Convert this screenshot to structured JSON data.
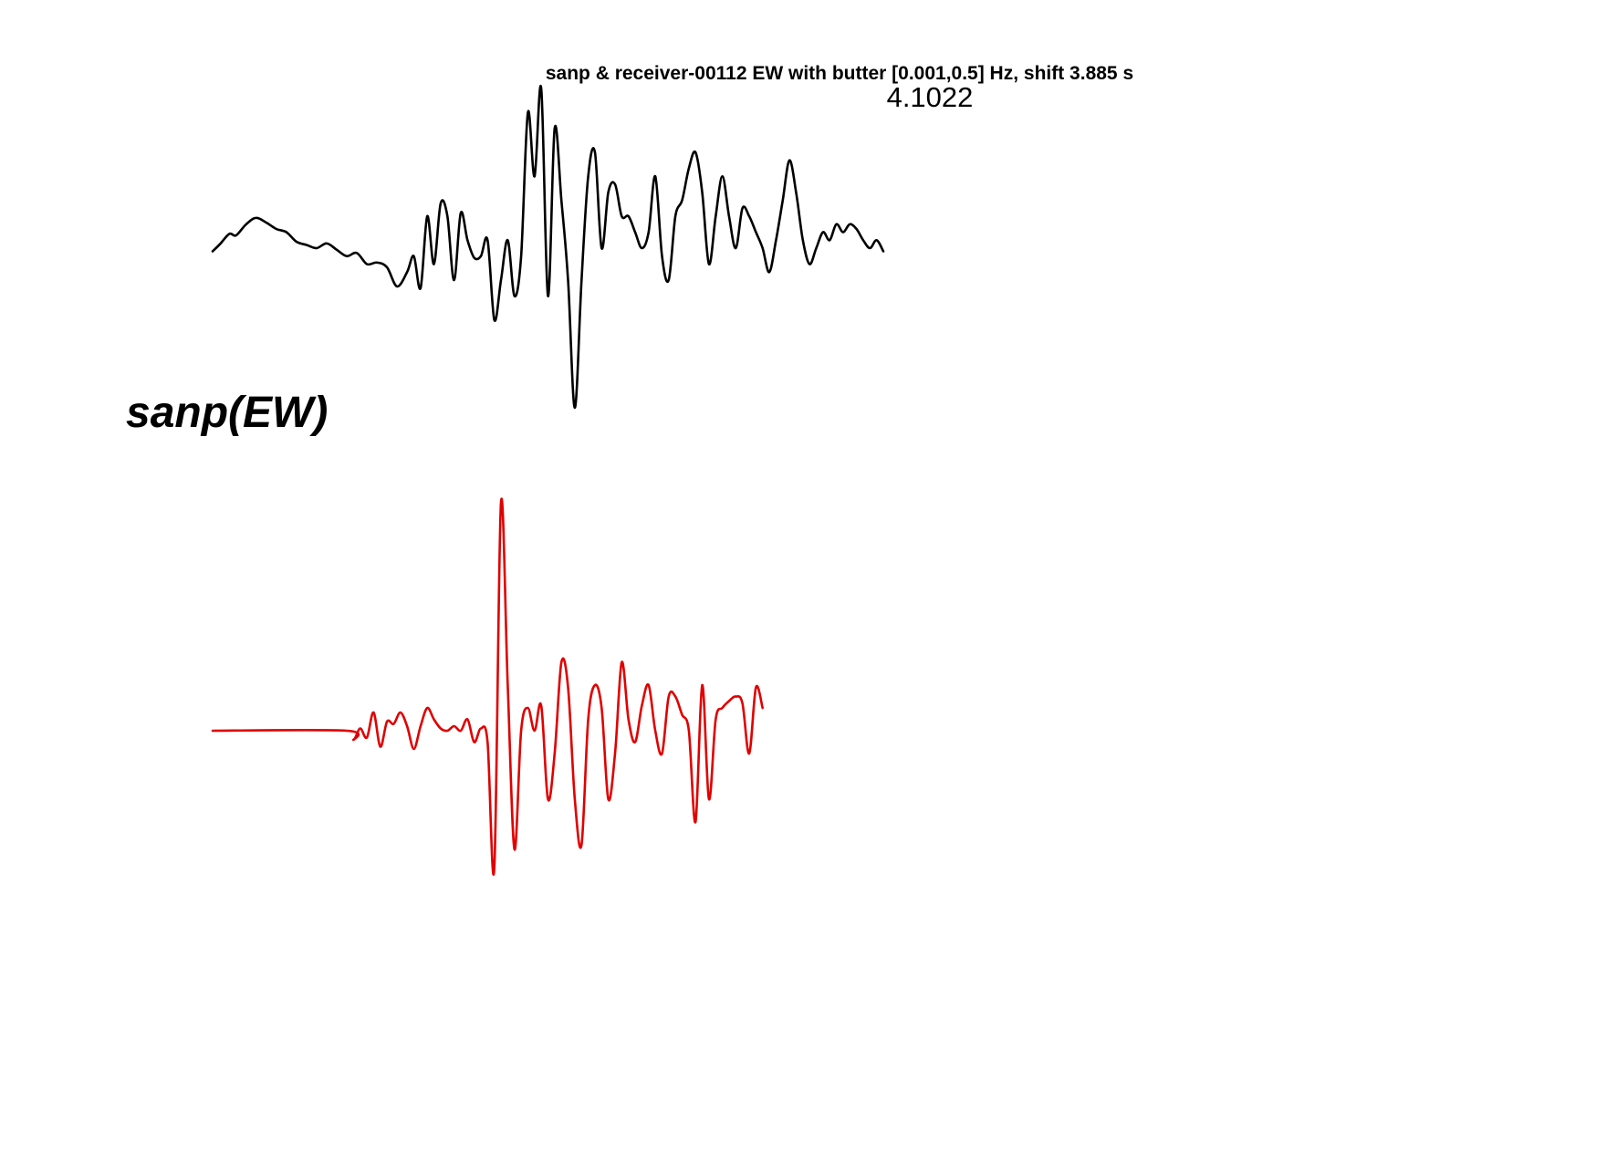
{
  "figure": {
    "title": "sanp & receiver-00112 EW with butter [0.001,0.5] Hz, shift 3.885 s",
    "coefficient": "4.1022",
    "station_label": "sanp(EW)"
  },
  "chart_data": {
    "type": "line",
    "title": "sanp & receiver-00112 EW with butter [0.001,0.5] Hz, shift 3.885 s",
    "xlabel": "",
    "ylabel": "",
    "axes_visible": false,
    "grid": false,
    "legend": "none",
    "annotation": "4.1022",
    "station_label": "sanp(EW)",
    "series": [
      {
        "color": "#000000",
        "x": [
          0,
          1.2,
          2.5,
          3.5,
          5,
          6.5,
          8,
          9.5,
          11,
          12.5,
          14,
          15.5,
          17,
          18.5,
          20,
          21.5,
          23,
          24.5,
          26,
          27.5,
          29,
          30,
          31,
          32,
          33,
          34,
          35,
          36,
          37,
          38,
          39,
          40,
          41,
          42,
          43,
          44,
          45,
          46,
          47,
          48,
          49,
          50,
          51,
          52,
          53,
          54,
          55,
          56,
          57,
          58,
          59,
          60,
          61,
          62,
          63,
          64,
          65,
          66,
          67,
          68,
          69,
          70,
          71,
          72,
          73,
          74,
          75,
          76,
          77,
          78,
          79,
          80,
          81,
          82,
          83,
          84,
          85,
          86,
          87,
          88,
          89,
          90,
          91,
          92,
          93,
          94,
          95,
          96,
          97,
          98,
          99,
          100
        ],
        "y": [
          -0.02,
          0.03,
          0.09,
          0.08,
          0.15,
          0.19,
          0.16,
          0.12,
          0.1,
          0.04,
          0.02,
          0.0,
          0.03,
          -0.01,
          -0.05,
          -0.03,
          -0.1,
          -0.09,
          -0.12,
          -0.24,
          -0.15,
          -0.05,
          -0.25,
          0.2,
          -0.1,
          0.28,
          0.2,
          -0.2,
          0.22,
          0.05,
          -0.06,
          -0.05,
          0.05,
          -0.45,
          -0.2,
          0.05,
          -0.3,
          -0.05,
          0.85,
          0.45,
          1.0,
          -0.3,
          0.75,
          0.3,
          -0.2,
          -1.0,
          -0.2,
          0.45,
          0.6,
          0.0,
          0.35,
          0.4,
          0.2,
          0.2,
          0.1,
          0.0,
          0.1,
          0.45,
          -0.05,
          -0.2,
          0.2,
          0.3,
          0.5,
          0.6,
          0.35,
          -0.1,
          0.2,
          0.45,
          0.2,
          0.0,
          0.25,
          0.2,
          0.1,
          0.0,
          -0.15,
          0.05,
          0.3,
          0.55,
          0.35,
          0.05,
          -0.1,
          0.0,
          0.1,
          0.05,
          0.15,
          0.1,
          0.15,
          0.12,
          0.05,
          0.0,
          0.05,
          -0.02
        ]
      },
      {
        "color": "#e00000",
        "x": [
          0,
          20,
          21,
          22,
          23,
          24,
          25,
          26,
          27,
          28,
          29,
          30,
          31,
          32,
          33,
          34,
          35,
          36,
          37,
          38,
          39,
          40,
          41,
          42,
          43,
          44,
          45,
          46,
          47,
          48,
          49,
          50,
          51,
          52,
          53,
          54,
          55,
          56,
          57,
          58,
          59,
          60,
          61,
          62,
          63,
          64,
          65,
          66,
          67,
          68,
          69,
          70,
          71,
          72,
          73,
          74,
          75,
          76,
          77,
          78,
          79,
          80,
          81,
          82
        ],
        "y": [
          0,
          0,
          -0.04,
          0.01,
          -0.03,
          0.08,
          -0.07,
          0.04,
          0.03,
          0.08,
          0.02,
          -0.08,
          0.02,
          0.1,
          0.05,
          0.01,
          0.0,
          0.02,
          0.0,
          0.05,
          -0.05,
          0.01,
          -0.05,
          -0.6,
          1.0,
          0.2,
          -0.52,
          0.0,
          0.1,
          0.0,
          0.11,
          -0.3,
          -0.1,
          0.3,
          0.19,
          -0.3,
          -0.5,
          0.05,
          0.2,
          0.1,
          -0.3,
          -0.1,
          0.3,
          0.05,
          -0.05,
          0.11,
          0.2,
          0.0,
          -0.1,
          0.15,
          0.15,
          0.07,
          0.0,
          -0.4,
          0.2,
          -0.3,
          0.05,
          0.1,
          0.13,
          0.15,
          0.12,
          -0.1,
          0.19,
          0.1
        ]
      }
    ]
  }
}
